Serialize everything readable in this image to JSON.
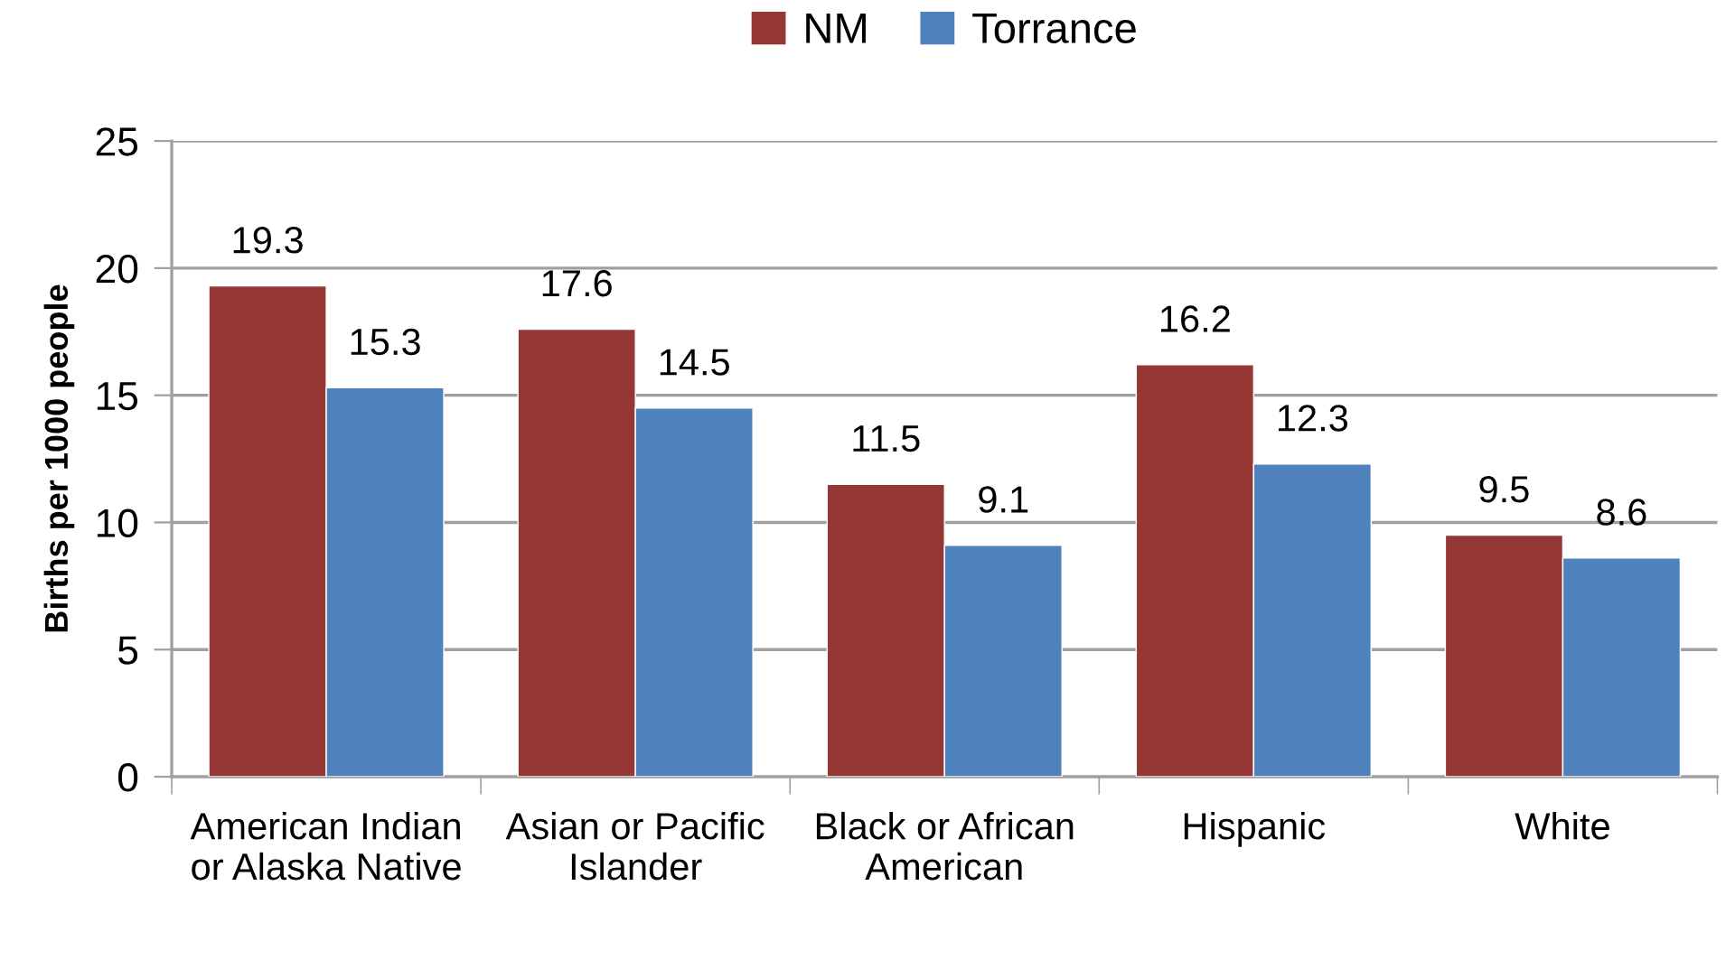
{
  "chart_data": {
    "type": "bar",
    "categories": [
      "American Indian or Alaska Native",
      "Asian or Pacific Islander",
      "Black or African American",
      "Hispanic",
      "White"
    ],
    "series": [
      {
        "name": "NM",
        "color": "#953735",
        "values": [
          19.3,
          17.6,
          11.5,
          16.2,
          9.5
        ]
      },
      {
        "name": "Torrance",
        "color": "#4f81bd",
        "values": [
          15.3,
          14.5,
          9.1,
          12.3,
          8.6
        ]
      }
    ],
    "ylabel": "Births per 1000 people",
    "ylim": [
      0,
      25
    ],
    "yticks": [
      0,
      5,
      10,
      15,
      20,
      25
    ],
    "grid": "y",
    "legend": "top",
    "data_labels": true
  }
}
